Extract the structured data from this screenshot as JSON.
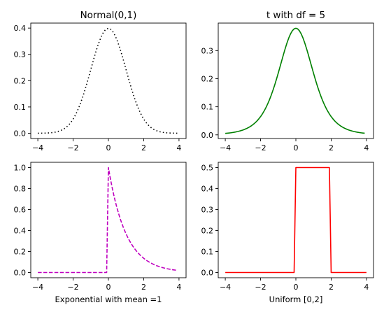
{
  "chart_data": [
    {
      "type": "line",
      "title": "Normal(0,1)",
      "xlabel": "",
      "ylabel": "",
      "xlim": [
        -4.4,
        4.4
      ],
      "ylim": [
        -0.02,
        0.419
      ],
      "xticks": [
        -4,
        -2,
        0,
        2,
        4
      ],
      "xtick_labels": [
        "−4",
        "−2",
        "0",
        "2",
        "4"
      ],
      "yticks": [
        0.0,
        0.1,
        0.2,
        0.3,
        0.4
      ],
      "ytick_labels": [
        "0.0",
        "0.1",
        "0.2",
        "0.3",
        "0.4"
      ],
      "grid": false,
      "series": [
        {
          "distribution": "normal",
          "x_range": [
            -4,
            3.9
          ],
          "color": "#000000",
          "linestyle": "dotted"
        }
      ]
    },
    {
      "type": "line",
      "title": "t with df = 5",
      "xlabel": "",
      "ylabel": "",
      "xlim": [
        -4.4,
        4.4
      ],
      "ylim": [
        -0.013,
        0.398
      ],
      "xticks": [
        -4,
        -2,
        0,
        2,
        4
      ],
      "xtick_labels": [
        "−4",
        "−2",
        "0",
        "2",
        "4"
      ],
      "yticks": [
        0.0,
        0.1,
        0.2,
        0.3
      ],
      "ytick_labels": [
        "0.0",
        "0.1",
        "0.2",
        "0.3"
      ],
      "grid": false,
      "series": [
        {
          "distribution": "t",
          "df": 5,
          "x_range": [
            -4,
            3.9
          ],
          "color": "#008000",
          "linestyle": "solid"
        }
      ]
    },
    {
      "type": "line",
      "title": "",
      "xlabel": "Exponential with mean =1",
      "ylabel": "",
      "xlim": [
        -4.4,
        4.4
      ],
      "ylim": [
        -0.05,
        1.05
      ],
      "xticks": [
        -4,
        -2,
        0,
        2,
        4
      ],
      "xtick_labels": [
        "−4",
        "−2",
        "0",
        "2",
        "4"
      ],
      "yticks": [
        0.0,
        0.2,
        0.4,
        0.6,
        0.8,
        1.0
      ],
      "ytick_labels": [
        "0.0",
        "0.2",
        "0.4",
        "0.6",
        "0.8",
        "1.0"
      ],
      "grid": false,
      "series": [
        {
          "distribution": "exponential",
          "mean": 1,
          "x_range": [
            -4,
            3.9
          ],
          "color": "#bf00bf",
          "linestyle": "dashed"
        }
      ]
    },
    {
      "type": "line",
      "title": "",
      "xlabel": "Uniform [0,2]",
      "ylabel": "",
      "xlim": [
        -4.4,
        4.4
      ],
      "ylim": [
        -0.025,
        0.525
      ],
      "xticks": [
        -4,
        -2,
        0,
        2,
        4
      ],
      "xtick_labels": [
        "−4",
        "−2",
        "0",
        "2",
        "4"
      ],
      "yticks": [
        0.0,
        0.1,
        0.2,
        0.3,
        0.4,
        0.5
      ],
      "ytick_labels": [
        "0.0",
        "0.1",
        "0.2",
        "0.3",
        "0.4",
        "0.5"
      ],
      "grid": false,
      "series": [
        {
          "distribution": "uniform",
          "low": 0,
          "high": 2,
          "color": "#ff0000",
          "linestyle": "solid",
          "x": [
            -4,
            -0.1,
            0,
            1.9,
            2,
            4
          ],
          "y": [
            0,
            0,
            0.5,
            0.5,
            0,
            0
          ]
        }
      ]
    }
  ]
}
